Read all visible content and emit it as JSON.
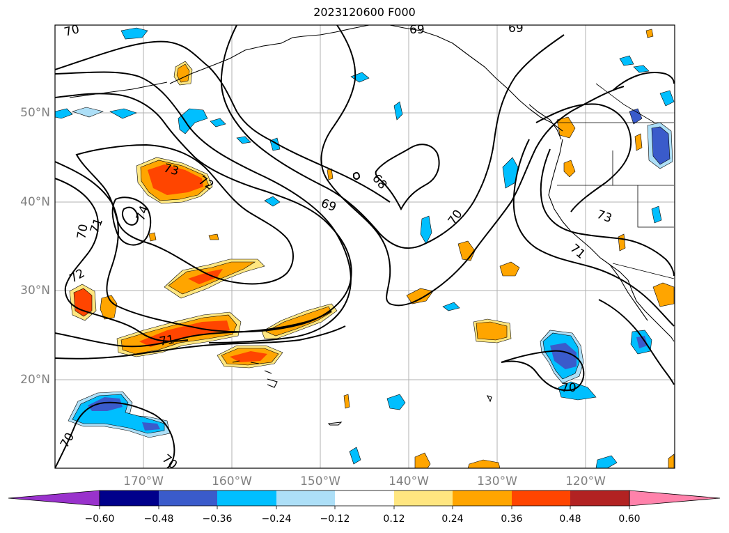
{
  "title": "2023120600 F000",
  "lat_labels": [
    "50°N",
    "40°N",
    "30°N",
    "20°N"
  ],
  "lon_labels": [
    "170°W",
    "160°W",
    "150°W",
    "140°W",
    "130°W",
    "120°W"
  ],
  "contour_labels": [
    "70",
    "69",
    "69",
    "68",
    "69",
    "73",
    "72",
    "74",
    "70",
    "71",
    "72",
    "71",
    "70",
    "73",
    "71",
    "70",
    "70",
    "70"
  ],
  "colorbar": {
    "ticks": [
      "−0.60",
      "−0.48",
      "−0.36",
      "−0.24",
      "−0.12",
      "0.12",
      "0.24",
      "0.36",
      "0.48",
      "0.60"
    ],
    "colors": [
      "#9932CC",
      "#00008B",
      "#3A5BCB",
      "#00BFFF",
      "#ADDFF7",
      "#FFFFFF",
      "#FFE680",
      "#FFA500",
      "#FF4500",
      "#B22222",
      "#FF82AB"
    ]
  }
}
